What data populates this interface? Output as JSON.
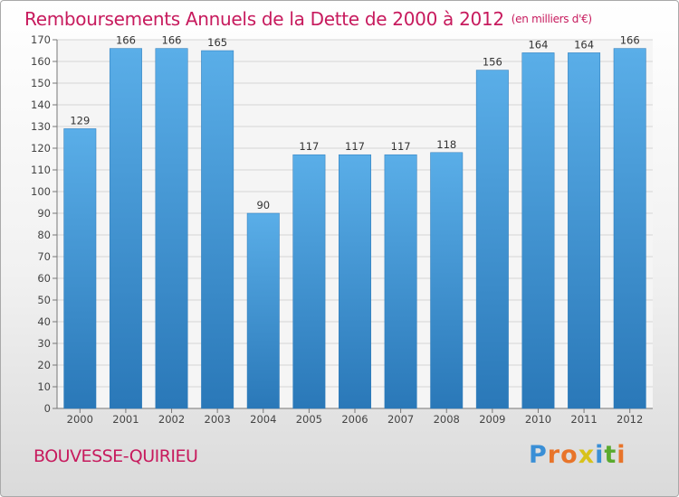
{
  "chart_data": {
    "type": "bar",
    "title": "Remboursements Annuels de la Dette de 2000 à 2012",
    "unit_note": "(en milliers d'€)",
    "categories": [
      "2000",
      "2001",
      "2002",
      "2003",
      "2004",
      "2005",
      "2006",
      "2007",
      "2008",
      "2009",
      "2010",
      "2011",
      "2012"
    ],
    "values": [
      129,
      166,
      166,
      165,
      90,
      117,
      117,
      117,
      118,
      156,
      164,
      164,
      166
    ],
    "ylim": [
      0,
      170
    ],
    "yticks": [
      0,
      10,
      20,
      30,
      40,
      50,
      60,
      70,
      80,
      90,
      100,
      110,
      120,
      130,
      140,
      150,
      160,
      170
    ],
    "grid": true,
    "bar_color_top": "#5aaee8",
    "bar_color_bottom": "#2a78b8"
  },
  "location": "BOUVESSE-QUIRIEU",
  "logo": {
    "letters": [
      "P",
      "r",
      "o",
      "x",
      "i",
      "t",
      "i"
    ],
    "colors": [
      "#3a8fd6",
      "#e8742a",
      "#e8742a",
      "#d8c21a",
      "#3a8fd6",
      "#5aaa2e",
      "#e8742a"
    ]
  },
  "colors": {
    "accent": "#c71a5d",
    "grid": "#d5d5d5",
    "axis": "#777777"
  }
}
